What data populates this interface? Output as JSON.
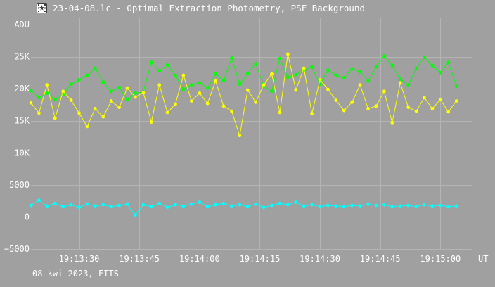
{
  "window": {
    "title": "23-04-08.lc - Optimal Extraction Photometry, PSF Background",
    "icon": "film-star-icon"
  },
  "footer": {
    "caption": "08 kwi 2023, FITS"
  },
  "colors": {
    "background": "#a0a0a0",
    "grid": "#b4b4b4",
    "series_green": "#00ff00",
    "series_yellow": "#ffff00",
    "series_cyan": "#00ffff",
    "text": "#ffffff"
  },
  "chart_data": {
    "type": "line",
    "ylabel": "ADU",
    "xlabel": "UT",
    "xlim": [
      "19:13:18",
      "19:15:08"
    ],
    "ylim": [
      -5000,
      30000
    ],
    "x_ticks": [
      "19:13:30",
      "19:13:45",
      "19:14:00",
      "19:14:15",
      "19:14:30",
      "19:14:45",
      "19:15:00"
    ],
    "y_ticks": [
      {
        "value": -5000,
        "label": "−5000"
      },
      {
        "value": 0,
        "label": "0"
      },
      {
        "value": 5000,
        "label": "5000"
      },
      {
        "value": 10000,
        "label": "10K"
      },
      {
        "value": 15000,
        "label": "15K"
      },
      {
        "value": 20000,
        "label": "20K"
      },
      {
        "value": 25000,
        "label": "25K"
      },
      {
        "value": 30000,
        "label": "ADU"
      }
    ],
    "grid": true,
    "series": [
      {
        "color": "#00ff00",
        "points": [
          [
            "19:13:18",
            19700
          ],
          [
            "19:13:20",
            18600
          ],
          [
            "19:13:22",
            19300
          ],
          [
            "19:13:24",
            18300
          ],
          [
            "19:13:26",
            19100
          ],
          [
            "19:13:28",
            20700
          ],
          [
            "19:13:30",
            21400
          ],
          [
            "19:13:32",
            22100
          ],
          [
            "19:13:34",
            23200
          ],
          [
            "19:13:36",
            21000
          ],
          [
            "19:13:38",
            19600
          ],
          [
            "19:13:40",
            20200
          ],
          [
            "19:13:42",
            18300
          ],
          [
            "19:13:44",
            19300
          ],
          [
            "19:13:46",
            19500
          ],
          [
            "19:13:48",
            24100
          ],
          [
            "19:13:50",
            22800
          ],
          [
            "19:13:52",
            23700
          ],
          [
            "19:13:54",
            22100
          ],
          [
            "19:13:56",
            19900
          ],
          [
            "19:13:58",
            20600
          ],
          [
            "19:14:00",
            20900
          ],
          [
            "19:14:02",
            20100
          ],
          [
            "19:14:04",
            22300
          ],
          [
            "19:14:06",
            21300
          ],
          [
            "19:14:08",
            24800
          ],
          [
            "19:14:10",
            20700
          ],
          [
            "19:14:12",
            22400
          ],
          [
            "19:14:14",
            23900
          ],
          [
            "19:14:16",
            20400
          ],
          [
            "19:14:18",
            19600
          ],
          [
            "19:14:20",
            24700
          ],
          [
            "19:14:22",
            21800
          ],
          [
            "19:14:24",
            22200
          ],
          [
            "19:14:26",
            22900
          ],
          [
            "19:14:28",
            23400
          ],
          [
            "19:14:30",
            20700
          ],
          [
            "19:14:32",
            22900
          ],
          [
            "19:14:34",
            22100
          ],
          [
            "19:14:36",
            21700
          ],
          [
            "19:14:38",
            23100
          ],
          [
            "19:14:40",
            22600
          ],
          [
            "19:14:42",
            21200
          ],
          [
            "19:14:44",
            23400
          ],
          [
            "19:14:46",
            25100
          ],
          [
            "19:14:48",
            23600
          ],
          [
            "19:14:50",
            21500
          ],
          [
            "19:14:52",
            20600
          ],
          [
            "19:14:54",
            23200
          ],
          [
            "19:14:56",
            24900
          ],
          [
            "19:14:58",
            23600
          ],
          [
            "19:15:00",
            22500
          ],
          [
            "19:15:02",
            24100
          ],
          [
            "19:15:04",
            20400
          ]
        ]
      },
      {
        "color": "#ffff00",
        "points": [
          [
            "19:13:18",
            17800
          ],
          [
            "19:13:20",
            16200
          ],
          [
            "19:13:22",
            20600
          ],
          [
            "19:13:24",
            15400
          ],
          [
            "19:13:26",
            19600
          ],
          [
            "19:13:28",
            18200
          ],
          [
            "19:13:30",
            16200
          ],
          [
            "19:13:32",
            14100
          ],
          [
            "19:13:34",
            16900
          ],
          [
            "19:13:36",
            15600
          ],
          [
            "19:13:38",
            18100
          ],
          [
            "19:13:40",
            17100
          ],
          [
            "19:13:42",
            20100
          ],
          [
            "19:13:44",
            18700
          ],
          [
            "19:13:46",
            19400
          ],
          [
            "19:13:48",
            14800
          ],
          [
            "19:13:50",
            20600
          ],
          [
            "19:13:52",
            16300
          ],
          [
            "19:13:54",
            17600
          ],
          [
            "19:13:56",
            22100
          ],
          [
            "19:13:58",
            18100
          ],
          [
            "19:14:00",
            19300
          ],
          [
            "19:14:02",
            17700
          ],
          [
            "19:14:04",
            21200
          ],
          [
            "19:14:06",
            17300
          ],
          [
            "19:14:08",
            16500
          ],
          [
            "19:14:10",
            12700
          ],
          [
            "19:14:12",
            19800
          ],
          [
            "19:14:14",
            17900
          ],
          [
            "19:14:16",
            20600
          ],
          [
            "19:14:18",
            22300
          ],
          [
            "19:14:20",
            16300
          ],
          [
            "19:14:22",
            25400
          ],
          [
            "19:14:24",
            19800
          ],
          [
            "19:14:26",
            23200
          ],
          [
            "19:14:28",
            16100
          ],
          [
            "19:14:30",
            21400
          ],
          [
            "19:14:32",
            19900
          ],
          [
            "19:14:34",
            18200
          ],
          [
            "19:14:36",
            16600
          ],
          [
            "19:14:38",
            17900
          ],
          [
            "19:14:40",
            20600
          ],
          [
            "19:14:42",
            16900
          ],
          [
            "19:14:44",
            17300
          ],
          [
            "19:14:46",
            19600
          ],
          [
            "19:14:48",
            14700
          ],
          [
            "19:14:50",
            20900
          ],
          [
            "19:14:52",
            17100
          ],
          [
            "19:14:54",
            16500
          ],
          [
            "19:14:56",
            18600
          ],
          [
            "19:14:58",
            16900
          ],
          [
            "19:15:00",
            18300
          ],
          [
            "19:15:02",
            16400
          ],
          [
            "19:15:04",
            18100
          ]
        ]
      },
      {
        "color": "#00ffff",
        "points": [
          [
            "19:13:18",
            1800
          ],
          [
            "19:13:20",
            2600
          ],
          [
            "19:13:22",
            1700
          ],
          [
            "19:13:24",
            2100
          ],
          [
            "19:13:26",
            1600
          ],
          [
            "19:13:28",
            1900
          ],
          [
            "19:13:30",
            1500
          ],
          [
            "19:13:32",
            2000
          ],
          [
            "19:13:34",
            1700
          ],
          [
            "19:13:36",
            1900
          ],
          [
            "19:13:38",
            1600
          ],
          [
            "19:13:40",
            1800
          ],
          [
            "19:13:42",
            2000
          ],
          [
            "19:13:44",
            300
          ],
          [
            "19:13:46",
            1900
          ],
          [
            "19:13:48",
            1600
          ],
          [
            "19:13:50",
            2100
          ],
          [
            "19:13:52",
            1500
          ],
          [
            "19:13:54",
            1900
          ],
          [
            "19:13:56",
            1700
          ],
          [
            "19:13:58",
            2000
          ],
          [
            "19:14:00",
            2300
          ],
          [
            "19:14:02",
            1600
          ],
          [
            "19:14:04",
            1900
          ],
          [
            "19:14:06",
            2100
          ],
          [
            "19:14:08",
            1700
          ],
          [
            "19:14:10",
            1900
          ],
          [
            "19:14:12",
            1600
          ],
          [
            "19:14:14",
            2000
          ],
          [
            "19:14:16",
            1500
          ],
          [
            "19:14:18",
            1800
          ],
          [
            "19:14:20",
            2100
          ],
          [
            "19:14:22",
            1900
          ],
          [
            "19:14:24",
            2300
          ],
          [
            "19:14:26",
            1700
          ],
          [
            "19:14:28",
            1900
          ],
          [
            "19:14:30",
            1600
          ],
          [
            "19:14:32",
            1800
          ],
          [
            "19:14:34",
            1700
          ],
          [
            "19:14:36",
            1600
          ],
          [
            "19:14:38",
            1800
          ],
          [
            "19:14:40",
            1700
          ],
          [
            "19:14:42",
            2000
          ],
          [
            "19:14:44",
            1800
          ],
          [
            "19:14:46",
            1900
          ],
          [
            "19:14:48",
            1600
          ],
          [
            "19:14:50",
            1700
          ],
          [
            "19:14:52",
            1800
          ],
          [
            "19:14:54",
            1600
          ],
          [
            "19:14:56",
            1900
          ],
          [
            "19:14:58",
            1700
          ],
          [
            "19:15:00",
            1800
          ],
          [
            "19:15:02",
            1600
          ],
          [
            "19:15:04",
            1700
          ]
        ]
      }
    ]
  }
}
